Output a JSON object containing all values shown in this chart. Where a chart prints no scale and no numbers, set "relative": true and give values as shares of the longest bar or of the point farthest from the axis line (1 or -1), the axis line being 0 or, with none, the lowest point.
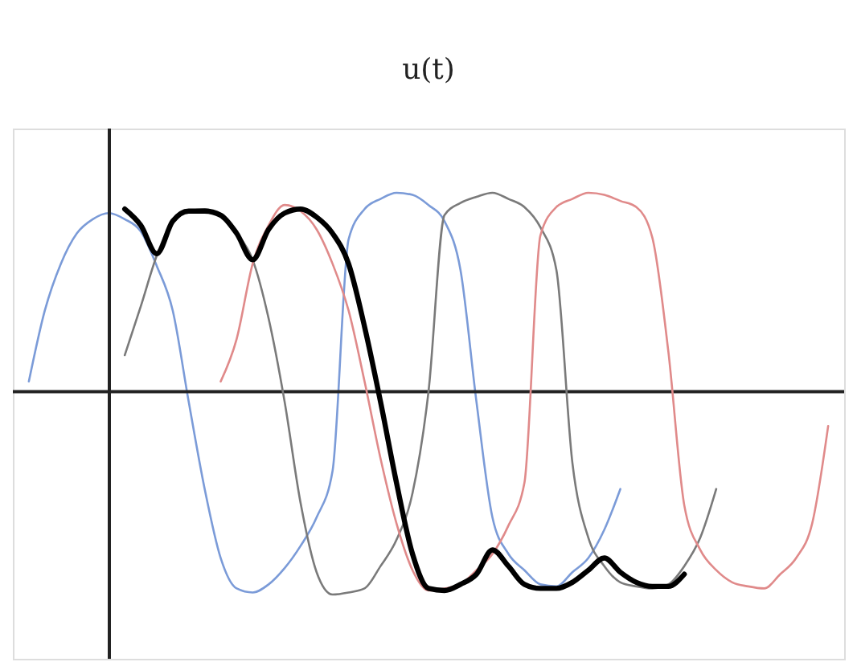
{
  "chart_data": {
    "type": "line",
    "title": "u(t)",
    "relative": true,
    "marker": "none",
    "line_style": "solid",
    "categories": [
      null,
      null,
      null,
      null,
      null,
      null,
      null,
      null,
      null,
      null,
      null,
      null,
      null,
      null,
      null,
      null,
      null,
      null,
      null,
      null,
      null,
      null,
      null,
      null,
      null,
      null,
      null,
      null,
      null,
      null,
      null,
      null,
      null,
      null,
      null,
      null,
      null,
      null,
      null,
      null,
      null,
      null,
      null,
      null,
      null,
      null,
      null,
      null,
      null,
      null,
      null,
      null,
      null
    ],
    "series": [
      {
        "color": "#7b9bd8",
        "values": [
          null,
          0.05,
          0.4,
          0.63,
          0.78,
          0.85,
          0.88,
          0.85,
          0.79,
          0.62,
          0.4,
          -0.05,
          -0.48,
          -0.82,
          -0.97,
          -0.99,
          -0.95,
          -0.87,
          -0.76,
          -0.62,
          -0.39,
          0.75,
          0.9,
          0.95,
          0.98,
          0.97,
          0.92,
          0.84,
          0.6,
          -0.05,
          -0.62,
          -0.8,
          -0.88,
          -0.95,
          -0.96,
          -0.89,
          -0.82,
          -0.68,
          -0.48,
          null,
          null,
          null,
          null,
          null,
          null,
          null,
          null,
          null,
          null,
          null,
          null,
          null,
          null
        ]
      },
      {
        "color": "#7a7a7a",
        "values": [
          null,
          null,
          null,
          null,
          null,
          null,
          null,
          0.18,
          0.42,
          0.67,
          0.84,
          0.89,
          0.9,
          0.86,
          0.78,
          0.65,
          0.36,
          -0.05,
          -0.55,
          -0.89,
          -1.0,
          -0.99,
          -0.97,
          -0.86,
          -0.73,
          -0.5,
          0.0,
          0.87,
          0.93,
          0.96,
          0.98,
          0.95,
          0.91,
          0.81,
          0.6,
          -0.35,
          -0.72,
          -0.86,
          -0.94,
          -0.96,
          -0.97,
          -0.95,
          -0.86,
          -0.72,
          -0.48,
          null,
          null,
          null,
          null,
          null,
          null,
          null,
          null
        ]
      },
      {
        "color": "#e08a8a",
        "values": [
          null,
          null,
          null,
          null,
          null,
          null,
          null,
          null,
          null,
          null,
          null,
          null,
          null,
          0.05,
          0.26,
          0.63,
          0.82,
          0.92,
          0.89,
          0.8,
          0.63,
          0.4,
          0.05,
          -0.33,
          -0.65,
          -0.88,
          -0.98,
          -0.97,
          -0.95,
          -0.88,
          -0.8,
          -0.66,
          -0.45,
          0.77,
          0.91,
          0.95,
          0.98,
          0.97,
          0.94,
          0.91,
          0.76,
          0.2,
          -0.56,
          -0.78,
          -0.88,
          -0.94,
          -0.96,
          -0.97,
          -0.9,
          -0.82,
          -0.65,
          -0.17,
          null
        ]
      },
      {
        "color": "#000000",
        "values": [
          null,
          null,
          null,
          null,
          null,
          null,
          null,
          0.9,
          0.82,
          0.68,
          0.84,
          0.89,
          0.89,
          0.87,
          0.78,
          0.65,
          0.8,
          0.88,
          0.9,
          0.86,
          0.78,
          0.63,
          0.32,
          -0.05,
          -0.45,
          -0.8,
          -0.97,
          -0.98,
          -0.95,
          -0.9,
          -0.78,
          -0.86,
          -0.95,
          -0.97,
          -0.97,
          -0.94,
          -0.88,
          -0.82,
          -0.89,
          -0.94,
          -0.96,
          -0.96,
          -0.9,
          null,
          null,
          null,
          null,
          null,
          null,
          null,
          null,
          null,
          null
        ]
      }
    ]
  }
}
